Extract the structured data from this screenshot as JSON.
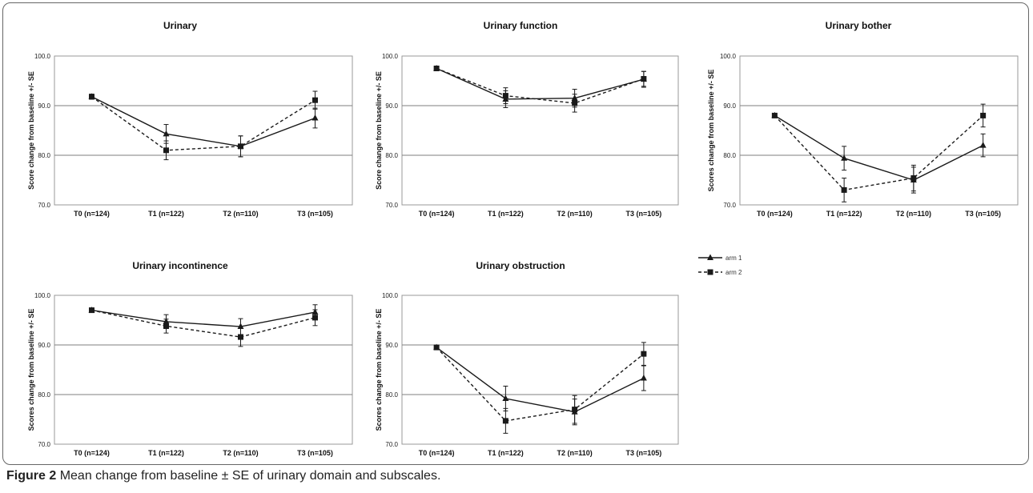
{
  "caption": {
    "label": "Figure 2",
    "text": "Mean change from baseline ± SE of urinary domain and subscales."
  },
  "legend": [
    {
      "name": "arm 1",
      "marker": "triangle",
      "dash": "solid"
    },
    {
      "name": "arm 2",
      "marker": "square",
      "dash": "dashed"
    }
  ],
  "colors": {
    "line": "#1a1a1a",
    "frame": "#666666",
    "grid": "#7f7f7f",
    "plot_border": "#999999"
  },
  "chart_data": [
    {
      "type": "line",
      "title": "Urinary",
      "ylabel": "Score change from baseline +/- SE",
      "xlabel": "",
      "categories": [
        "T0 (n=124)",
        "T1  (n=122)",
        "T2 (n=110)",
        "T3 (n=105)"
      ],
      "ylim": [
        70,
        100
      ],
      "yticks": [
        "70.0",
        "80.0",
        "90.0",
        "100.0"
      ],
      "grid": "horizontal",
      "series": [
        {
          "name": "arm 1",
          "values": [
            91.8,
            84.3,
            81.8,
            87.5
          ],
          "errors": [
            0.5,
            1.9,
            2.1,
            2.0
          ]
        },
        {
          "name": "arm 2",
          "values": [
            91.8,
            81.0,
            81.8,
            91.1
          ],
          "errors": [
            0.5,
            1.9,
            2.1,
            1.8
          ]
        }
      ]
    },
    {
      "type": "line",
      "title": "Urinary function",
      "ylabel": "Score change from baseline +/- SE",
      "xlabel": "",
      "categories": [
        "T0 (n=124)",
        "T1  (n=122)",
        "T2 (n=110)",
        "T3 (n=105)"
      ],
      "ylim": [
        70,
        100
      ],
      "yticks": [
        "70.0",
        "80.0",
        "90.0",
        "100.0"
      ],
      "grid": "horizontal",
      "series": [
        {
          "name": "arm 1",
          "values": [
            97.5,
            91.3,
            91.5,
            95.3
          ],
          "errors": [
            0.4,
            1.7,
            1.8,
            1.6
          ]
        },
        {
          "name": "arm 2",
          "values": [
            97.5,
            92.0,
            90.5,
            95.4
          ],
          "errors": [
            0.4,
            1.6,
            1.8,
            1.5
          ]
        }
      ]
    },
    {
      "type": "line",
      "title": "Urinary bother",
      "ylabel": "Scores change from baseline +/- SE",
      "xlabel": "",
      "categories": [
        "T0 (n=124)",
        "T1  (n=122)",
        "T2 (n=110)",
        "T3 (n=105)"
      ],
      "ylim": [
        70,
        100
      ],
      "yticks": [
        "70.0",
        "80.0",
        "90.0",
        "100.0"
      ],
      "grid": "horizontal",
      "series": [
        {
          "name": "arm 1",
          "values": [
            88.0,
            79.4,
            75.0,
            82.0
          ],
          "errors": [
            0.3,
            2.4,
            2.6,
            2.3
          ]
        },
        {
          "name": "arm 2",
          "values": [
            88.0,
            73.0,
            75.4,
            88.0
          ],
          "errors": [
            0.3,
            2.4,
            2.6,
            2.3
          ]
        }
      ]
    },
    {
      "type": "line",
      "title": "Urinary incontinence",
      "ylabel": "Scores change from baseline +/- SE",
      "xlabel": "",
      "categories": [
        "T0 (n=124)",
        "T1  (n=122)",
        "T2 (n=110)",
        "T3 (n=105)"
      ],
      "ylim": [
        70,
        100
      ],
      "yticks": [
        "70.0",
        "80.0",
        "90.0",
        "100.0"
      ],
      "grid": "horizontal",
      "series": [
        {
          "name": "arm 1",
          "values": [
            97.0,
            94.7,
            93.7,
            96.6
          ],
          "errors": [
            0.4,
            1.4,
            1.6,
            1.5
          ]
        },
        {
          "name": "arm 2",
          "values": [
            97.0,
            93.8,
            91.6,
            95.5
          ],
          "errors": [
            0.4,
            1.4,
            1.9,
            1.6
          ]
        }
      ]
    },
    {
      "type": "line",
      "title": "Urinary obstruction",
      "ylabel": "Scores change from baseline +/- SE",
      "xlabel": "",
      "categories": [
        "T0 (n=124)",
        "T1  (n=122)",
        "T2 (n=110)",
        "T3 (n=105)"
      ],
      "ylim": [
        70,
        100
      ],
      "yticks": [
        "70.0",
        "80.0",
        "90.0",
        "100.0"
      ],
      "grid": "horizontal",
      "series": [
        {
          "name": "arm 1",
          "values": [
            89.5,
            79.2,
            76.5,
            83.3
          ],
          "errors": [
            0.3,
            2.5,
            2.6,
            2.5
          ]
        },
        {
          "name": "arm 2",
          "values": [
            89.5,
            74.7,
            77.0,
            88.2
          ],
          "errors": [
            0.3,
            2.5,
            2.8,
            2.3
          ]
        }
      ]
    }
  ]
}
